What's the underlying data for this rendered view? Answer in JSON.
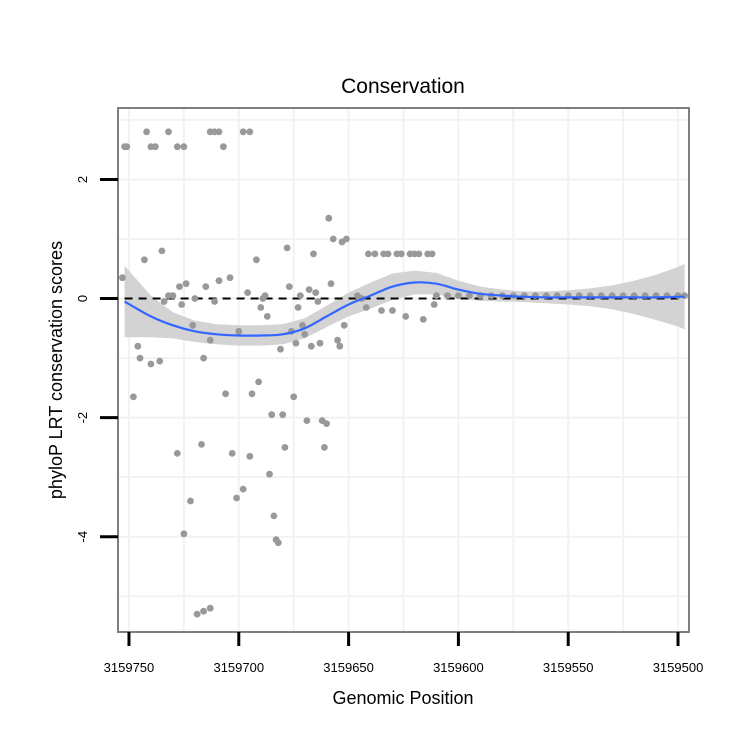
{
  "chart_data": {
    "type": "scatter",
    "title": "Conservation",
    "xlabel": "Genomic Position",
    "ylabel": "phyloP LRT conservation scores",
    "x_reversed": true,
    "xlim": [
      3159755,
      3159495
    ],
    "ylim": [
      -5.6,
      3.2
    ],
    "x_ticks": [
      3159750,
      3159700,
      3159650,
      3159600,
      3159550,
      3159500
    ],
    "x_tick_labels": [
      "3159750",
      "3159700",
      "3159650",
      "3159600",
      "3159550",
      "3159500"
    ],
    "y_ticks": [
      2,
      0,
      -2,
      -4
    ],
    "y_tick_labels": [
      "2",
      "0",
      "-2",
      "-4"
    ],
    "reference_line": {
      "y": 0,
      "style": "dashed"
    },
    "colors": {
      "points": "#999999",
      "smooth": "#3366ff",
      "ribbon": "#d3d3d3",
      "frame": "#7f7f7f",
      "grid": "#f2f2f2",
      "reference": "#000000"
    },
    "points": [
      [
        3159752,
        2.55
      ],
      [
        3159751,
        2.55
      ],
      [
        3159742,
        2.8
      ],
      [
        3159740,
        2.55
      ],
      [
        3159738,
        2.55
      ],
      [
        3159732,
        2.8
      ],
      [
        3159728,
        2.55
      ],
      [
        3159725,
        2.55
      ],
      [
        3159713,
        2.8
      ],
      [
        3159711,
        2.8
      ],
      [
        3159709,
        2.8
      ],
      [
        3159707,
        2.55
      ],
      [
        3159698,
        2.8
      ],
      [
        3159695,
        2.8
      ],
      [
        3159753,
        0.35
      ],
      [
        3159748,
        -1.65
      ],
      [
        3159746,
        -0.8
      ],
      [
        3159745,
        -1.0
      ],
      [
        3159743,
        0.65
      ],
      [
        3159740,
        -1.1
      ],
      [
        3159736,
        -1.05
      ],
      [
        3159735,
        0.8
      ],
      [
        3159732,
        0.05
      ],
      [
        3159728,
        -2.6
      ],
      [
        3159727,
        0.2
      ],
      [
        3159725,
        -3.95
      ],
      [
        3159724,
        0.25
      ],
      [
        3159722,
        -3.4
      ],
      [
        3159721,
        -0.45
      ],
      [
        3159720,
        0.0
      ],
      [
        3159717,
        -2.45
      ],
      [
        3159716,
        -1.0
      ],
      [
        3159715,
        0.2
      ],
      [
        3159713,
        -0.7
      ],
      [
        3159711,
        -0.05
      ],
      [
        3159709,
        0.3
      ],
      [
        3159706,
        -1.6
      ],
      [
        3159704,
        0.35
      ],
      [
        3159703,
        -2.6
      ],
      [
        3159701,
        -3.35
      ],
      [
        3159700,
        -0.55
      ],
      [
        3159698,
        -3.2
      ],
      [
        3159696,
        0.1
      ],
      [
        3159695,
        -2.65
      ],
      [
        3159694,
        -1.6
      ],
      [
        3159692,
        0.65
      ],
      [
        3159691,
        -1.4
      ],
      [
        3159689,
        0.0
      ],
      [
        3159687,
        -0.3
      ],
      [
        3159686,
        -2.95
      ],
      [
        3159685,
        -1.95
      ],
      [
        3159684,
        -3.65
      ],
      [
        3159683,
        -4.05
      ],
      [
        3159682,
        -4.1
      ],
      [
        3159681,
        -0.85
      ],
      [
        3159680,
        -1.95
      ],
      [
        3159679,
        -2.5
      ],
      [
        3159678,
        0.85
      ],
      [
        3159677,
        0.2
      ],
      [
        3159676,
        -0.55
      ],
      [
        3159675,
        -1.65
      ],
      [
        3159674,
        -0.75
      ],
      [
        3159673,
        -0.15
      ],
      [
        3159672,
        0.05
      ],
      [
        3159671,
        -0.45
      ],
      [
        3159670,
        -0.6
      ],
      [
        3159669,
        -2.05
      ],
      [
        3159668,
        0.15
      ],
      [
        3159667,
        -0.8
      ],
      [
        3159666,
        0.75
      ],
      [
        3159665,
        0.1
      ],
      [
        3159664,
        -0.05
      ],
      [
        3159663,
        -0.75
      ],
      [
        3159662,
        -2.05
      ],
      [
        3159661,
        -2.5
      ],
      [
        3159660,
        -2.1
      ],
      [
        3159659,
        1.35
      ],
      [
        3159658,
        0.25
      ],
      [
        3159657,
        1.0
      ],
      [
        3159655,
        -0.7
      ],
      [
        3159654,
        -0.8
      ],
      [
        3159653,
        0.95
      ],
      [
        3159652,
        -0.45
      ],
      [
        3159651,
        1.0
      ],
      [
        3159646,
        0.05
      ],
      [
        3159644,
        0.0
      ],
      [
        3159642,
        -0.15
      ],
      [
        3159641,
        0.75
      ],
      [
        3159638,
        0.75
      ],
      [
        3159635,
        -0.2
      ],
      [
        3159634,
        0.75
      ],
      [
        3159632,
        0.75
      ],
      [
        3159630,
        -0.2
      ],
      [
        3159628,
        0.75
      ],
      [
        3159626,
        0.75
      ],
      [
        3159624,
        -0.3
      ],
      [
        3159622,
        0.75
      ],
      [
        3159620,
        0.75
      ],
      [
        3159618,
        0.75
      ],
      [
        3159616,
        -0.35
      ],
      [
        3159614,
        0.75
      ],
      [
        3159612,
        0.75
      ],
      [
        3159611,
        -0.1
      ],
      [
        3159734,
        -0.05
      ],
      [
        3159730,
        0.05
      ],
      [
        3159726,
        -0.1
      ],
      [
        3159719,
        -5.3
      ],
      [
        3159716,
        -5.25
      ],
      [
        3159713,
        -5.2
      ],
      [
        3159690,
        -0.15
      ],
      [
        3159688,
        0.05
      ],
      [
        3159610,
        0.05
      ],
      [
        3159605,
        0.05
      ],
      [
        3159600,
        0.05
      ],
      [
        3159595,
        0.05
      ],
      [
        3159590,
        0.05
      ],
      [
        3159585,
        0.05
      ],
      [
        3159580,
        0.05
      ],
      [
        3159575,
        0.05
      ],
      [
        3159570,
        0.05
      ],
      [
        3159565,
        0.05
      ],
      [
        3159560,
        0.05
      ],
      [
        3159555,
        0.05
      ],
      [
        3159550,
        0.05
      ],
      [
        3159545,
        0.05
      ],
      [
        3159540,
        0.05
      ],
      [
        3159535,
        0.05
      ],
      [
        3159530,
        0.05
      ],
      [
        3159525,
        0.05
      ],
      [
        3159520,
        0.05
      ],
      [
        3159515,
        0.05
      ],
      [
        3159510,
        0.05
      ],
      [
        3159505,
        0.05
      ],
      [
        3159500,
        0.05
      ],
      [
        3159497,
        0.05
      ]
    ],
    "smooth_x": [
      3159752,
      3159740,
      3159730,
      3159720,
      3159710,
      3159700,
      3159690,
      3159680,
      3159670,
      3159660,
      3159650,
      3159640,
      3159630,
      3159620,
      3159610,
      3159600,
      3159590,
      3159580,
      3159570,
      3159560,
      3159550,
      3159540,
      3159530,
      3159520,
      3159510,
      3159500,
      3159497
    ],
    "smooth_y": [
      -0.05,
      -0.3,
      -0.45,
      -0.55,
      -0.6,
      -0.62,
      -0.62,
      -0.6,
      -0.5,
      -0.3,
      -0.1,
      0.05,
      0.2,
      0.27,
      0.25,
      0.15,
      0.08,
      0.05,
      0.03,
      0.02,
      0.02,
      0.02,
      0.02,
      0.02,
      0.02,
      0.03,
      0.03
    ],
    "ribbon_half_width": [
      0.6,
      0.35,
      0.22,
      0.18,
      0.17,
      0.17,
      0.17,
      0.17,
      0.17,
      0.18,
      0.2,
      0.22,
      0.22,
      0.2,
      0.18,
      0.15,
      0.12,
      0.1,
      0.09,
      0.1,
      0.12,
      0.15,
      0.2,
      0.28,
      0.38,
      0.5,
      0.55
    ]
  }
}
